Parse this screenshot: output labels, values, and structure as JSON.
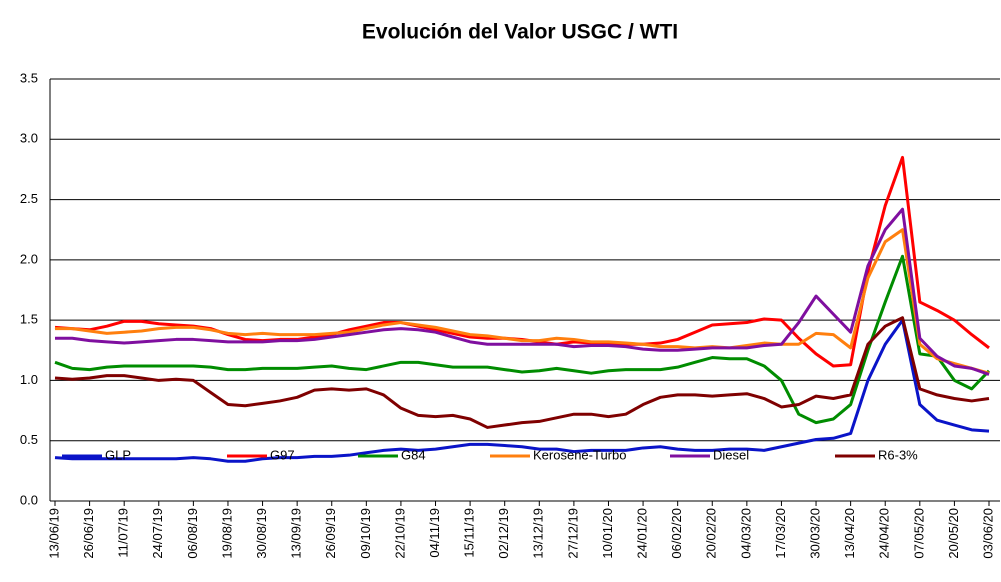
{
  "chart_data": {
    "type": "line",
    "title": "Evolución del Valor USGC / WTI",
    "categories": [
      "13/06/19",
      null,
      "26/06/19",
      null,
      "11/07/19",
      null,
      "24/07/19",
      null,
      "06/08/19",
      null,
      "19/08/19",
      null,
      "30/08/19",
      null,
      "13/09/19",
      null,
      "26/09/19",
      null,
      "09/10/19",
      null,
      "22/10/19",
      null,
      "04/11/19",
      null,
      "15/11/19",
      null,
      "02/12/19",
      null,
      "13/12/19",
      null,
      "27/12/19",
      null,
      "10/01/20",
      null,
      "24/01/20",
      null,
      "06/02/20",
      null,
      "20/02/20",
      null,
      "04/03/20",
      null,
      "17/03/20",
      null,
      "30/03/20",
      null,
      "13/04/20",
      null,
      "24/04/20",
      null,
      "07/05/20",
      null,
      "20/05/20",
      null,
      "03/06/20"
    ],
    "series": [
      {
        "name": "GLP",
        "color": "#0a14c8",
        "values": [
          0.36,
          0.35,
          0.35,
          0.35,
          0.35,
          0.35,
          0.35,
          0.35,
          0.36,
          0.35,
          0.33,
          0.33,
          0.35,
          0.36,
          0.36,
          0.37,
          0.37,
          0.38,
          0.4,
          0.42,
          0.43,
          0.42,
          0.43,
          0.45,
          0.47,
          0.47,
          0.46,
          0.45,
          0.43,
          0.43,
          0.41,
          0.42,
          0.42,
          0.42,
          0.44,
          0.45,
          0.43,
          0.42,
          0.42,
          0.43,
          0.43,
          0.42,
          0.45,
          0.48,
          0.51,
          0.52,
          0.56,
          1.0,
          1.3,
          1.5,
          0.8,
          0.67,
          0.63,
          0.59,
          0.58
        ]
      },
      {
        "name": "G97",
        "color": "#ff0000",
        "values": [
          1.44,
          1.43,
          1.42,
          1.45,
          1.49,
          1.49,
          1.47,
          1.46,
          1.45,
          1.43,
          1.38,
          1.34,
          1.33,
          1.34,
          1.34,
          1.36,
          1.38,
          1.42,
          1.45,
          1.48,
          1.48,
          1.45,
          1.42,
          1.39,
          1.36,
          1.35,
          1.35,
          1.34,
          1.32,
          1.3,
          1.32,
          1.31,
          1.31,
          1.3,
          1.3,
          1.31,
          1.34,
          1.4,
          1.46,
          1.47,
          1.48,
          1.51,
          1.5,
          1.35,
          1.22,
          1.12,
          1.13,
          1.9,
          2.45,
          2.85,
          1.65,
          1.58,
          1.5,
          1.38,
          1.27
        ]
      },
      {
        "name": "G84",
        "color": "#008c00",
        "values": [
          1.15,
          1.1,
          1.09,
          1.11,
          1.12,
          1.12,
          1.12,
          1.12,
          1.12,
          1.11,
          1.09,
          1.09,
          1.1,
          1.1,
          1.1,
          1.11,
          1.12,
          1.1,
          1.09,
          1.12,
          1.15,
          1.15,
          1.13,
          1.11,
          1.11,
          1.11,
          1.09,
          1.07,
          1.08,
          1.1,
          1.08,
          1.06,
          1.08,
          1.09,
          1.09,
          1.09,
          1.11,
          1.15,
          1.19,
          1.18,
          1.18,
          1.12,
          1.0,
          0.72,
          0.65,
          0.68,
          0.8,
          1.25,
          1.65,
          2.03,
          1.22,
          1.2,
          1.0,
          0.93,
          1.08
        ]
      },
      {
        "name": "Kerosene-Turbo",
        "color": "#ff7f0e",
        "values": [
          1.43,
          1.43,
          1.41,
          1.39,
          1.4,
          1.41,
          1.43,
          1.44,
          1.44,
          1.42,
          1.39,
          1.38,
          1.39,
          1.38,
          1.38,
          1.38,
          1.39,
          1.4,
          1.43,
          1.46,
          1.48,
          1.46,
          1.44,
          1.41,
          1.38,
          1.37,
          1.35,
          1.33,
          1.33,
          1.35,
          1.34,
          1.32,
          1.32,
          1.31,
          1.3,
          1.28,
          1.28,
          1.27,
          1.28,
          1.27,
          1.29,
          1.31,
          1.3,
          1.3,
          1.39,
          1.38,
          1.27,
          1.85,
          2.15,
          2.25,
          1.3,
          1.18,
          1.14,
          1.1,
          1.06
        ]
      },
      {
        "name": "Diesel",
        "color": "#7f0f9f",
        "values": [
          1.35,
          1.35,
          1.33,
          1.32,
          1.31,
          1.32,
          1.33,
          1.34,
          1.34,
          1.33,
          1.32,
          1.32,
          1.32,
          1.33,
          1.33,
          1.34,
          1.36,
          1.38,
          1.4,
          1.42,
          1.43,
          1.42,
          1.4,
          1.36,
          1.32,
          1.3,
          1.3,
          1.3,
          1.3,
          1.3,
          1.28,
          1.29,
          1.29,
          1.28,
          1.26,
          1.25,
          1.25,
          1.26,
          1.27,
          1.27,
          1.27,
          1.29,
          1.3,
          1.48,
          1.7,
          1.55,
          1.4,
          1.95,
          2.25,
          2.42,
          1.35,
          1.2,
          1.12,
          1.1,
          1.05
        ]
      },
      {
        "name": "R6-3%",
        "color": "#7f0000",
        "values": [
          1.02,
          1.01,
          1.02,
          1.04,
          1.04,
          1.02,
          1.0,
          1.01,
          1.0,
          0.9,
          0.8,
          0.79,
          0.81,
          0.83,
          0.86,
          0.92,
          0.93,
          0.92,
          0.93,
          0.88,
          0.77,
          0.71,
          0.7,
          0.71,
          0.68,
          0.61,
          0.63,
          0.65,
          0.66,
          0.69,
          0.72,
          0.72,
          0.7,
          0.72,
          0.8,
          0.86,
          0.88,
          0.88,
          0.87,
          0.88,
          0.89,
          0.85,
          0.78,
          0.8,
          0.87,
          0.85,
          0.88,
          1.3,
          1.45,
          1.52,
          0.93,
          0.88,
          0.85,
          0.83,
          0.85
        ]
      }
    ],
    "ylim": [
      0,
      3.5
    ],
    "yticks": [
      {
        "value": 0,
        "label": "0.0"
      },
      0.5,
      {
        "value": 1,
        "label": "1.0"
      },
      1.5,
      {
        "value": 2,
        "label": "2.0"
      },
      2.5,
      {
        "value": 3,
        "label": "3.0"
      },
      3.5
    ],
    "grid": true,
    "legend": "bottom"
  }
}
